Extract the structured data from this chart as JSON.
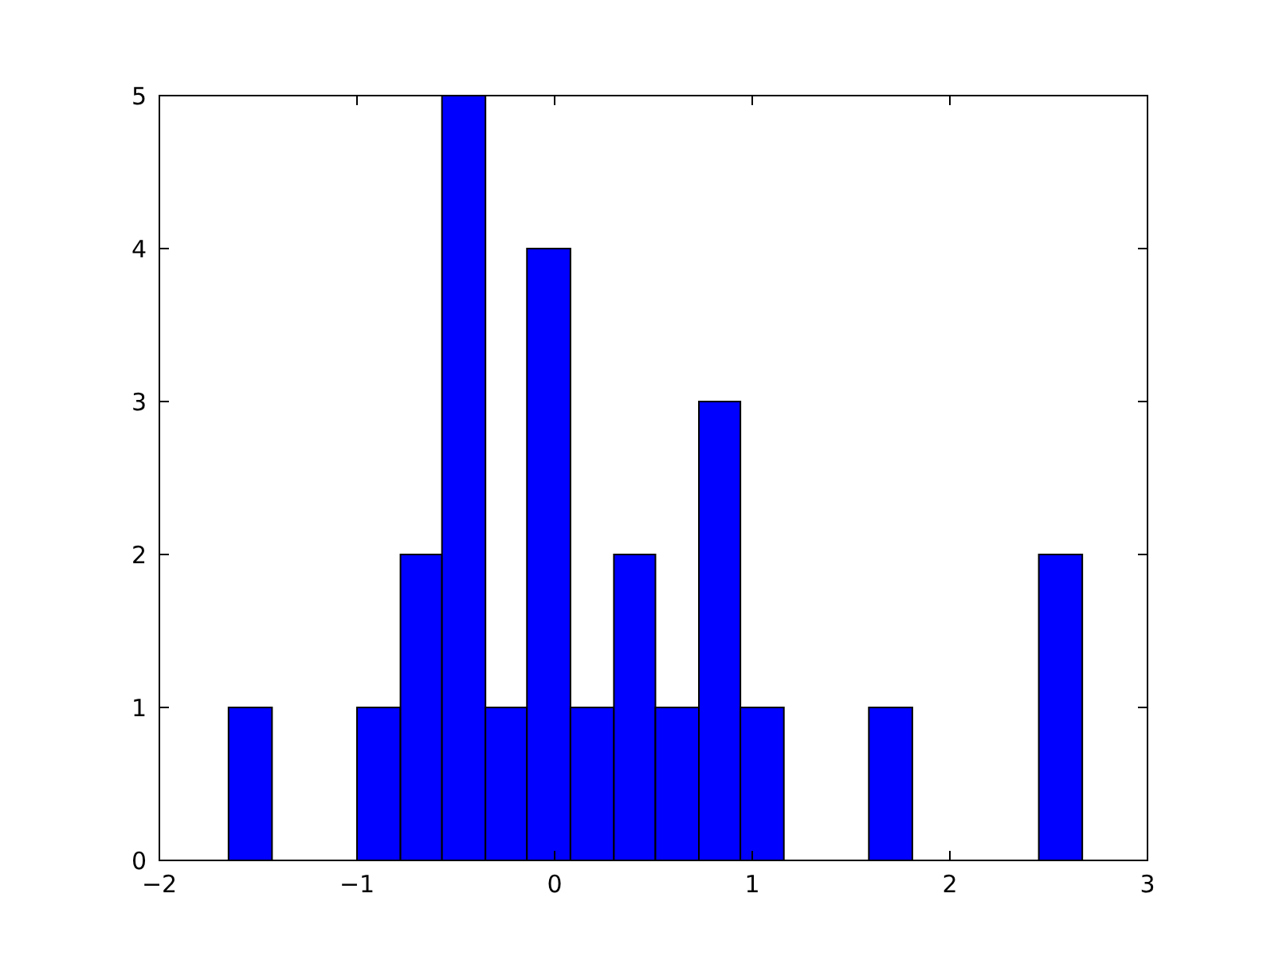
{
  "chart_data": {
    "type": "histogram",
    "bins": [
      -1.65,
      -1.43,
      -1.0,
      -0.78,
      -0.57,
      -0.35,
      -0.14,
      0.08,
      0.3,
      0.51,
      0.73,
      0.94,
      1.16,
      1.59,
      1.81,
      2.45,
      2.67
    ],
    "values": [
      1,
      0,
      1,
      2,
      5,
      1,
      4,
      1,
      2,
      1,
      3,
      1,
      0,
      1,
      0,
      2
    ],
    "color": "#0000ff",
    "xlim": [
      -2,
      3
    ],
    "xticks": [
      {
        "value": -2,
        "label": "−2"
      },
      {
        "value": -1,
        "label": "−1"
      },
      0,
      1,
      2,
      3
    ],
    "ylim": [
      0,
      5
    ],
    "yticks": [
      0,
      1,
      2,
      3,
      4,
      5
    ]
  }
}
